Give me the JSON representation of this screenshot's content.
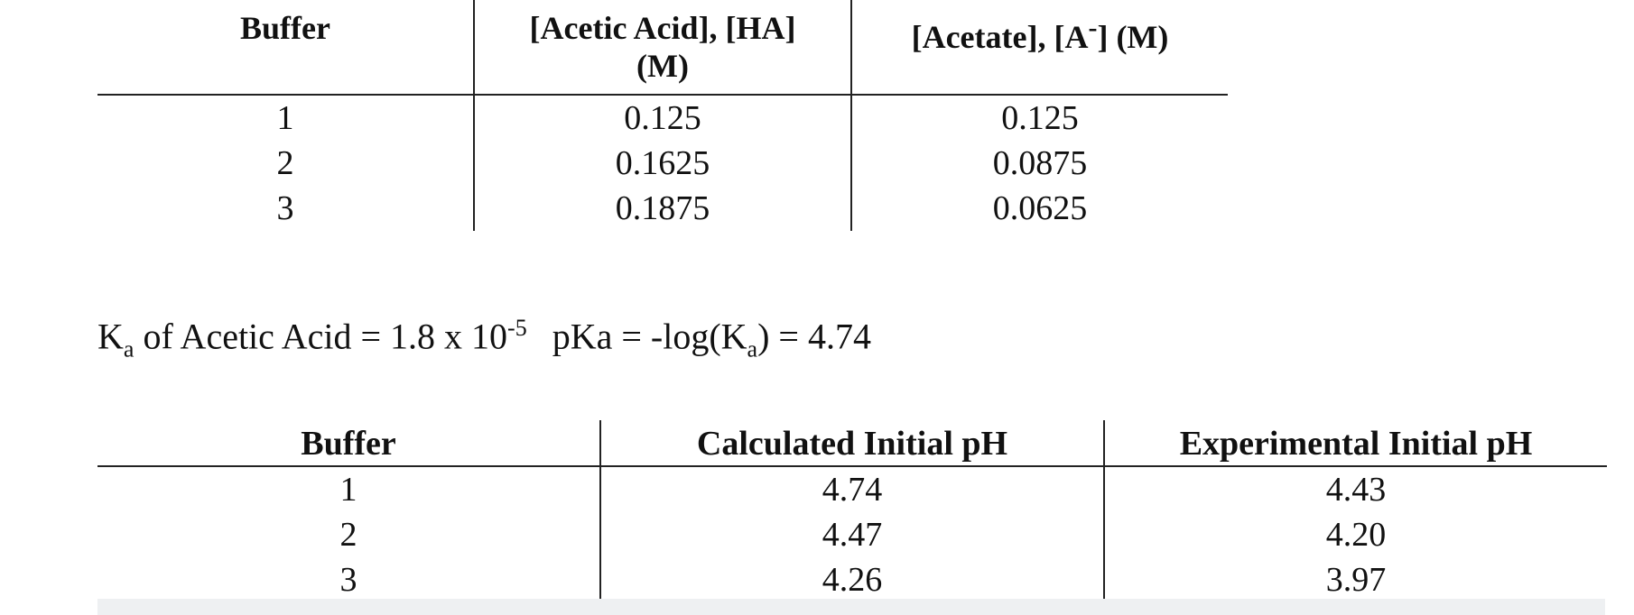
{
  "table1": {
    "headers": {
      "buffer": "Buffer",
      "acid_line1": "[Acetic Acid], [HA]",
      "acid_line2": "(M)",
      "acetate_pre": "[Acetate], [A",
      "acetate_sup": "-",
      "acetate_post": "] (M)"
    },
    "rows": [
      {
        "buffer": "1",
        "acid": "0.125",
        "acetate": "0.125"
      },
      {
        "buffer": "2",
        "acid": "0.1625",
        "acetate": "0.0875"
      },
      {
        "buffer": "3",
        "acid": "0.1875",
        "acetate": "0.0625"
      }
    ]
  },
  "ka_line": {
    "k": "K",
    "a_sub": "a",
    "ka_text": " of Acetic Acid = 1.8 x 10",
    "exp": "-5",
    "pka_text": "pKa = -log(K",
    "pka_sub": "a",
    "pka_result": ") = 4.74"
  },
  "table2": {
    "headers": {
      "buffer": "Buffer",
      "calculated": "Calculated Initial pH",
      "experimental": "Experimental Initial pH"
    },
    "rows": [
      {
        "buffer": "1",
        "calculated": "4.74",
        "experimental": "4.43"
      },
      {
        "buffer": "2",
        "calculated": "4.47",
        "experimental": "4.20"
      },
      {
        "buffer": "3",
        "calculated": "4.26",
        "experimental": "3.97"
      }
    ]
  }
}
